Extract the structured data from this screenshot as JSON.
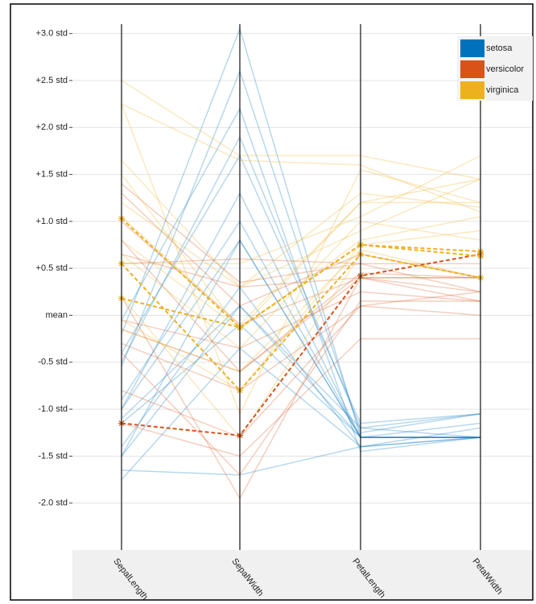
{
  "chart_data": {
    "type": "parallel",
    "categories": [
      "SepalLength",
      "SepalWidth",
      "PetalLength",
      "PetalWidth"
    ],
    "ylim": [
      -2.5,
      3.1
    ],
    "yticks": [
      {
        "value": 3,
        "label": "+3.0 std"
      },
      {
        "value": 2.5,
        "label": "+2.5 std"
      },
      {
        "value": 2,
        "label": "+2.0 std"
      },
      {
        "value": 1.5,
        "label": "+1.5 std"
      },
      {
        "value": 1,
        "label": "+1.0 std"
      },
      {
        "value": 0.5,
        "label": "+0.5 std"
      },
      {
        "value": 0,
        "label": "mean"
      },
      {
        "value": -0.5,
        "label": "-0.5 std"
      },
      {
        "value": -1,
        "label": "-1.0 std"
      },
      {
        "value": -1.5,
        "label": "-1.5 std"
      },
      {
        "value": -2,
        "label": "-2.0 std"
      }
    ],
    "grid": true,
    "legend": "top-right",
    "series": [
      {
        "name": "setosa",
        "color": "#0072bd",
        "lines": [
          [
            -0.9,
            1.0,
            -1.3,
            -1.3
          ],
          [
            -1.15,
            -0.1,
            -1.3,
            -1.3
          ],
          [
            -1.4,
            0.3,
            -1.4,
            -1.3
          ],
          [
            -1.5,
            0.1,
            -1.3,
            -1.3
          ],
          [
            -1.0,
            1.3,
            -1.3,
            -1.3
          ],
          [
            -0.5,
            1.9,
            -1.2,
            -1.05
          ],
          [
            -1.5,
            0.8,
            -1.3,
            -1.15
          ],
          [
            -1.0,
            0.8,
            -1.3,
            -1.3
          ],
          [
            -1.75,
            -0.35,
            -1.4,
            -1.3
          ],
          [
            -0.05,
            2.2,
            -1.45,
            -1.3
          ],
          [
            -0.55,
            2.6,
            -1.25,
            -1.05
          ],
          [
            -1.65,
            -1.7,
            -1.4,
            -1.2
          ],
          [
            -1.1,
            0.1,
            -1.2,
            -1.3
          ],
          [
            -0.4,
            1.7,
            -1.15,
            -1.05
          ],
          [
            -0.2,
            3.05,
            -1.3,
            -1.3
          ]
        ],
        "highlighted": []
      },
      {
        "name": "versicolor",
        "color": "#d95319",
        "lines": [
          [
            1.4,
            0.35,
            0.55,
            0.25
          ],
          [
            0.65,
            0.3,
            0.4,
            0.4
          ],
          [
            1.3,
            0.1,
            0.65,
            0.4
          ],
          [
            -0.4,
            -1.7,
            0.15,
            0.15
          ],
          [
            0.8,
            -0.6,
            0.45,
            0.4
          ],
          [
            -0.15,
            -0.6,
            0.4,
            0.15
          ],
          [
            0.55,
            0.6,
            0.55,
            0.55
          ],
          [
            -1.15,
            -1.5,
            -0.25,
            -0.25
          ],
          [
            1.0,
            -0.1,
            0.4,
            0.25
          ],
          [
            -0.3,
            -0.8,
            0.1,
            0.0
          ],
          [
            0.2,
            -1.95,
            0.4,
            0.4
          ],
          [
            -0.05,
            -0.35,
            0.25,
            0.15
          ],
          [
            -0.8,
            -1.3,
            0.1,
            0.25
          ]
        ],
        "highlighted": [
          [
            -1.15,
            -1.28,
            0.42,
            0.65
          ]
        ]
      },
      {
        "name": "virginica",
        "color": "#edb120",
        "lines": [
          [
            0.55,
            0.55,
            1.05,
            1.7
          ],
          [
            -0.05,
            -0.8,
            0.75,
            0.9
          ],
          [
            1.5,
            -0.15,
            1.2,
            1.2
          ],
          [
            0.65,
            -0.35,
            1.0,
            0.8
          ],
          [
            1.05,
            -0.1,
            1.2,
            1.45
          ],
          [
            2.25,
            1.65,
            1.6,
            1.1
          ],
          [
            -0.15,
            -0.6,
            0.7,
            0.4
          ],
          [
            2.5,
            1.7,
            1.7,
            1.45
          ],
          [
            1.2,
            0.3,
            0.9,
            1.45
          ],
          [
            0.2,
            -1.3,
            0.65,
            0.4
          ],
          [
            1.65,
            0.3,
            1.3,
            1.15
          ],
          [
            0.8,
            -0.15,
            0.8,
            1.05
          ],
          [
            2.25,
            -1.05,
            1.55,
            1.2
          ]
        ],
        "highlighted": [
          [
            1.03,
            -0.13,
            0.75,
            0.68
          ],
          [
            0.55,
            -0.8,
            0.65,
            0.4
          ],
          [
            0.18,
            -0.13,
            0.75,
            0.63
          ]
        ]
      }
    ]
  }
}
